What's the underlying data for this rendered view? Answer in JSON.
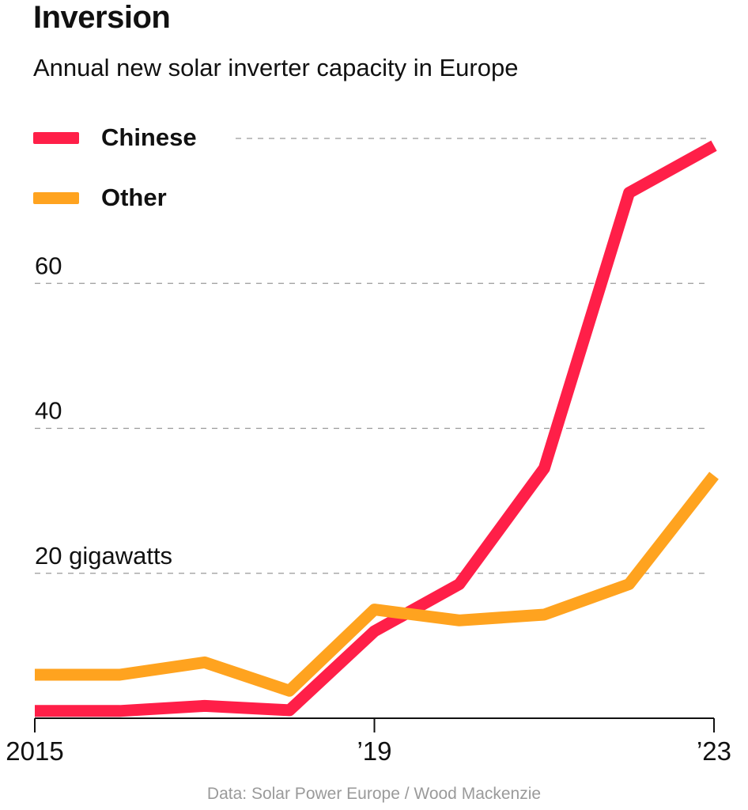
{
  "chart_data": {
    "type": "line",
    "title": "Inversion",
    "subtitle": "Annual new solar inverter capacity in Europe",
    "source": "Data: Solar Power Europe / Wood Mackenzie",
    "x": [
      2015,
      2016,
      2017,
      2018,
      2019,
      2020,
      2021,
      2022,
      2023
    ],
    "x_tick_labels": [
      "2015",
      "’19",
      "’23"
    ],
    "x_tick_values": [
      2015,
      2019,
      2023
    ],
    "y_tick_labels": [
      "20 gigawatts",
      "40",
      "60"
    ],
    "y_tick_values": [
      20,
      40,
      60
    ],
    "ylim": [
      0,
      80
    ],
    "grid": true,
    "legend_placement": "top-left",
    "series": [
      {
        "name": "Chinese",
        "color": "#ff1f48",
        "values": [
          1,
          1,
          1.7,
          1.1,
          12,
          18.5,
          34.5,
          72.5,
          79
        ]
      },
      {
        "name": "Other",
        "color": "#ffa31f",
        "values": [
          6,
          6,
          7.7,
          3.8,
          15,
          13.5,
          14.3,
          18.5,
          33.5
        ]
      }
    ]
  }
}
